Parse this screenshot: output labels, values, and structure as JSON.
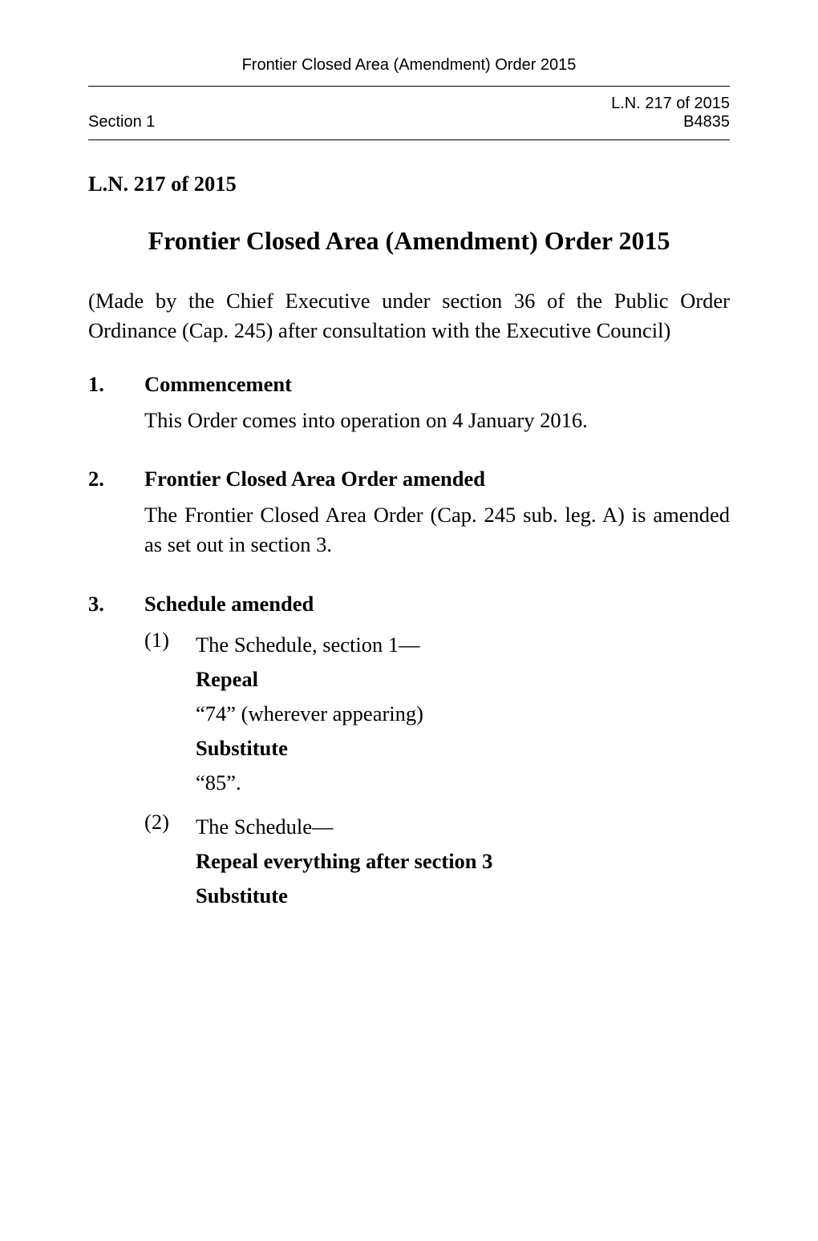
{
  "running_header": "Frontier Closed Area (Amendment) Order 2015",
  "meta": {
    "section_label": "Section 1",
    "ln_no": "L.N. 217 of 2015",
    "page_no": "B4835"
  },
  "top_ln": "L.N. 217 of 2015",
  "title": "Frontier Closed Area (Amendment) Order 2015",
  "enacting": "(Made by the Chief Executive under section 36 of the Public Order Ordinance (Cap. 245) after consultation with the Executive Council)",
  "sections": [
    {
      "num": "1.",
      "heading": "Commencement",
      "paras": [
        {
          "type": "text",
          "text": "This Order comes into operation on 4 January 2016."
        }
      ]
    },
    {
      "num": "2.",
      "heading": "Frontier Closed Area Order amended",
      "paras": [
        {
          "type": "text",
          "text": "The Frontier Closed Area Order (Cap. 245 sub. leg. A) is amended as set out in section 3."
        }
      ]
    },
    {
      "num": "3.",
      "heading": "Schedule amended",
      "subs": [
        {
          "num": "(1)",
          "lines": [
            {
              "type": "plain",
              "text": "The Schedule, section 1—"
            },
            {
              "type": "directive",
              "text": "Repeal"
            },
            {
              "type": "plain",
              "text": "“74” (wherever appearing)"
            },
            {
              "type": "directive",
              "text": "Substitute"
            },
            {
              "type": "plain",
              "text": "“85”."
            }
          ]
        },
        {
          "num": "(2)",
          "lines": [
            {
              "type": "plain",
              "text": "The Schedule—"
            },
            {
              "type": "directive",
              "text": "Repeal everything after section 3"
            },
            {
              "type": "directive",
              "text": "Substitute"
            }
          ]
        }
      ]
    }
  ]
}
